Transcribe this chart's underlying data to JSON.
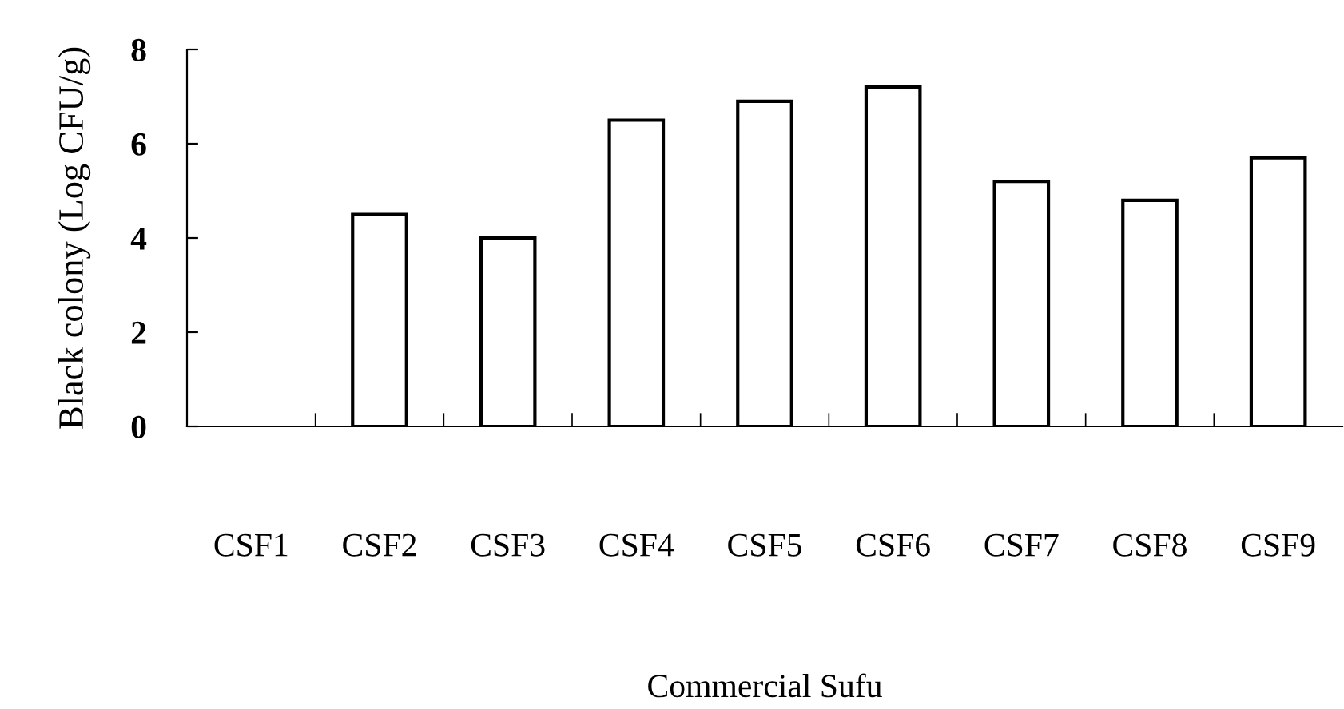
{
  "chart_data": {
    "type": "bar",
    "xlabel": "Commercial Sufu",
    "ylabel": "Black colony (Log CFU/g)",
    "categories": [
      "CSF1",
      "CSF2",
      "CSF3",
      "CSF4",
      "CSF5",
      "CSF6",
      "CSF7",
      "CSF8",
      "CSF9"
    ],
    "values": [
      null,
      4.5,
      4.0,
      6.5,
      6.9,
      7.2,
      5.2,
      4.8,
      5.7
    ],
    "color": "#ffffff",
    "ylim": [
      0,
      8
    ],
    "yticks": [
      0,
      2,
      4,
      6,
      8
    ],
    "grid": false
  }
}
